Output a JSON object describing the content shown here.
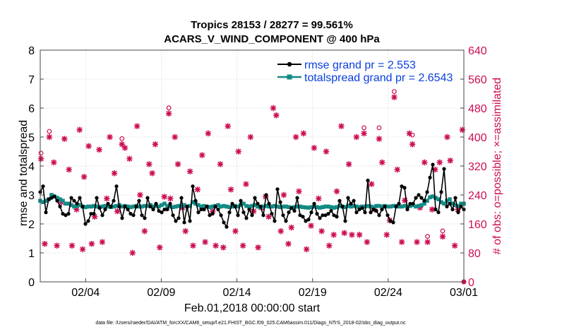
{
  "chart_data": {
    "type": "line",
    "title": "Tropics 28153 / 28277 = 99.561%",
    "subtitle": "ACARS_V_WIND_COMPONENT @ 400 hPa",
    "xlabel": "Feb.01,2018 00:00:00 start",
    "ylabel_left": "rmse and totalspread",
    "ylabel_right": "# of obs: o=possible; ×=assimilated",
    "ylim_left": [
      0,
      8
    ],
    "ylim_right": [
      0,
      640
    ],
    "xlim": [
      0,
      28
    ],
    "y_ticks_left": [
      "0",
      "1",
      "2",
      "3",
      "4",
      "5",
      "6",
      "7",
      "8"
    ],
    "y_ticks_right": [
      "0",
      "80",
      "160",
      "240",
      "320",
      "400",
      "480",
      "560",
      "640"
    ],
    "x_ticks": [
      {
        "x": 3,
        "label": "02/04"
      },
      {
        "x": 8,
        "label": "02/09"
      },
      {
        "x": 13,
        "label": "02/14"
      },
      {
        "x": 18,
        "label": "02/19"
      },
      {
        "x": 23,
        "label": "02/24"
      },
      {
        "x": 28,
        "label": "03/01"
      }
    ],
    "grid": true,
    "legend_position": "top-right",
    "colors": {
      "rmse": "#000000",
      "spread": "#128a85",
      "obs": "#cc0e55",
      "legend_text": "#0a3fe0"
    },
    "series": [
      {
        "name": "rmse grand pr = 2.553",
        "axis": "left",
        "marker": "circle",
        "values": [
          3.1,
          3.3,
          2.4,
          2.85,
          2.9,
          2.95,
          2.8,
          2.6,
          2.35,
          2.3,
          2.35,
          2.9,
          2.8,
          2.7,
          2.9,
          2.6,
          2.0,
          2.1,
          2.35,
          2.35,
          2.9,
          2.55,
          2.3,
          2.5,
          2.7,
          2.6,
          2.8,
          3.3,
          2.6,
          2.2,
          2.6,
          2.5,
          2.35,
          2.3,
          2.6,
          2.8,
          2.3,
          2.2,
          2.9,
          2.6,
          2.5,
          2.7,
          2.45,
          2.4,
          2.5,
          2.5,
          2.7,
          2.3,
          2.1,
          2.2,
          2.9,
          2.05,
          2.6,
          2.1,
          3.3,
          2.8,
          2.4,
          2.5,
          2.5,
          2.6,
          2.3,
          2.35,
          2.6,
          2.5,
          2.3,
          2.05,
          1.9,
          2.4,
          2.7,
          2.6,
          2.3,
          2.8,
          2.4,
          2.2,
          2.5,
          2.3,
          2.9,
          2.7,
          2.6,
          2.3,
          3.0,
          2.7,
          2.35,
          2.1,
          3.2,
          2.75,
          2.3,
          2.1,
          2.4,
          2.55,
          2.45,
          2.9,
          2.3,
          2.25,
          2.1,
          2.15,
          2.4,
          2.7,
          2.35,
          2.2,
          2.3,
          2.3,
          2.35,
          2.45,
          2.3,
          2.25,
          2.8,
          2.6,
          2.1,
          2.9,
          2.7,
          2.8,
          2.4,
          2.5,
          2.55,
          2.4,
          3.5,
          2.4,
          2.5,
          2.45,
          2.3,
          2.5,
          2.6,
          2.3,
          2.1,
          2.05,
          2.6,
          2.7,
          3.3,
          3.25,
          2.5,
          2.7,
          2.7,
          2.9,
          3.0,
          2.9,
          2.8,
          3.1,
          3.6,
          4.05,
          2.5,
          2.4,
          3.1,
          3.9,
          2.6,
          2.7,
          2.5,
          2.9,
          2.4,
          2.6,
          2.5
        ],
        "value_precision": "approximate, read from plot"
      },
      {
        "name": "totalspread grand pr = 2.6543",
        "axis": "left",
        "marker": "square",
        "values": [
          2.8,
          2.75,
          2.8,
          2.85,
          3.0,
          2.95,
          2.9,
          2.85,
          2.8,
          2.7,
          2.7,
          2.65,
          2.6,
          2.62,
          2.65,
          2.6,
          2.58,
          2.6,
          2.6,
          2.62,
          2.6,
          2.58,
          2.6,
          2.62,
          2.6,
          2.58,
          2.6,
          2.62,
          2.65,
          2.6,
          2.62,
          2.6,
          2.58,
          2.6,
          2.62,
          2.6,
          2.6,
          2.62,
          2.62,
          2.65,
          2.6,
          2.62,
          2.6,
          2.65,
          2.7,
          2.62,
          2.6,
          2.58,
          2.6,
          2.62,
          2.6,
          2.65,
          2.6,
          2.62,
          2.75,
          2.7,
          2.65,
          2.6,
          2.62,
          2.6,
          2.58,
          2.6,
          2.62,
          2.65,
          2.6,
          2.62,
          2.6,
          2.58,
          2.6,
          2.62,
          2.6,
          2.65,
          2.7,
          2.62,
          2.6,
          2.62,
          2.65,
          2.6,
          2.58,
          2.6,
          2.62,
          2.6,
          2.6,
          2.62,
          2.6,
          2.58,
          2.6,
          2.6,
          2.58,
          2.56,
          2.58,
          2.6,
          2.6,
          2.58,
          2.57,
          2.56,
          2.58,
          2.6,
          2.58,
          2.56,
          2.58,
          2.6,
          2.6,
          2.58,
          2.56,
          2.58,
          2.62,
          2.6,
          2.58,
          2.62,
          2.6,
          2.62,
          2.6,
          2.58,
          2.6,
          2.6,
          2.62,
          2.6,
          2.58,
          2.62,
          2.62,
          2.6,
          2.62,
          2.6,
          2.6,
          2.62,
          2.62,
          2.6,
          2.6,
          2.62,
          2.6,
          2.62,
          2.65,
          2.6,
          2.62,
          2.65,
          2.7,
          2.8,
          2.92,
          2.95,
          2.9,
          2.85,
          2.75,
          2.7,
          2.8,
          2.85,
          2.7,
          2.65,
          2.62,
          2.7,
          2.7
        ],
        "value_precision": "approximate, read from plot"
      },
      {
        "name": "# of obs assimilated",
        "axis": "right",
        "marker": "cross",
        "points": [
          [
            0.05,
            340
          ],
          [
            0.3,
            105
          ],
          [
            0.6,
            400
          ],
          [
            0.9,
            330
          ],
          [
            1.1,
            100
          ],
          [
            1.4,
            220
          ],
          [
            1.6,
            395
          ],
          [
            1.9,
            310
          ],
          [
            2.1,
            100
          ],
          [
            2.4,
            200
          ],
          [
            2.6,
            420
          ],
          [
            2.8,
            90
          ],
          [
            2.9,
            290
          ],
          [
            3.2,
            375
          ],
          [
            3.4,
            105
          ],
          [
            3.6,
            180
          ],
          [
            3.9,
            365
          ],
          [
            4.1,
            110
          ],
          [
            4.4,
            230
          ],
          [
            4.6,
            400
          ],
          [
            4.9,
            300
          ],
          [
            5.1,
            195
          ],
          [
            5.4,
            380
          ],
          [
            5.6,
            370
          ],
          [
            5.9,
            340
          ],
          [
            6.1,
            80
          ],
          [
            6.4,
            430
          ],
          [
            6.6,
            240
          ],
          [
            6.9,
            140
          ],
          [
            7.2,
            325
          ],
          [
            7.4,
            300
          ],
          [
            7.6,
            380
          ],
          [
            7.9,
            95
          ],
          [
            8.2,
            235
          ],
          [
            8.5,
            465
          ],
          [
            8.6,
            230
          ],
          [
            8.9,
            400
          ],
          [
            9.1,
            325
          ],
          [
            9.4,
            205
          ],
          [
            9.6,
            140
          ],
          [
            9.9,
            305
          ],
          [
            10.1,
            100
          ],
          [
            10.4,
            255
          ],
          [
            10.7,
            350
          ],
          [
            10.9,
            110
          ],
          [
            11.1,
            410
          ],
          [
            11.4,
            195
          ],
          [
            11.6,
            100
          ],
          [
            11.9,
            325
          ],
          [
            12.1,
            95
          ],
          [
            12.4,
            430
          ],
          [
            12.6,
            255
          ],
          [
            12.9,
            140
          ],
          [
            13.1,
            360
          ],
          [
            13.4,
            100
          ],
          [
            13.6,
            270
          ],
          [
            13.9,
            400
          ],
          [
            14.1,
            195
          ],
          [
            14.4,
            95
          ],
          [
            14.6,
            205
          ],
          [
            14.9,
            235
          ],
          [
            15.1,
            180
          ],
          [
            15.4,
            480
          ],
          [
            15.6,
            460
          ],
          [
            15.9,
            140
          ],
          [
            16.1,
            240
          ],
          [
            16.4,
            105
          ],
          [
            16.6,
            150
          ],
          [
            16.9,
            400
          ],
          [
            17.1,
            250
          ],
          [
            17.4,
            410
          ],
          [
            17.6,
            90
          ],
          [
            17.9,
            155
          ],
          [
            18.1,
            370
          ],
          [
            18.4,
            230
          ],
          [
            18.6,
            140
          ],
          [
            18.9,
            360
          ],
          [
            19.1,
            100
          ],
          [
            19.4,
            130
          ],
          [
            19.6,
            250
          ],
          [
            19.9,
            430
          ],
          [
            20.1,
            135
          ],
          [
            20.4,
            325
          ],
          [
            20.6,
            130
          ],
          [
            20.9,
            400
          ],
          [
            21.1,
            130
          ],
          [
            21.4,
            410
          ],
          [
            21.6,
            110
          ],
          [
            21.9,
            270
          ],
          [
            22.1,
            200
          ],
          [
            22.4,
            395
          ],
          [
            22.6,
            330
          ],
          [
            22.9,
            130
          ],
          [
            23.1,
            170
          ],
          [
            23.4,
            510
          ],
          [
            23.6,
            310
          ],
          [
            23.9,
            110
          ],
          [
            24.1,
            225
          ],
          [
            24.4,
            410
          ],
          [
            24.6,
            380
          ],
          [
            24.9,
            110
          ],
          [
            25.1,
            205
          ],
          [
            25.4,
            330
          ],
          [
            25.6,
            110
          ],
          [
            25.9,
            200
          ],
          [
            26.1,
            310
          ],
          [
            26.4,
            330
          ],
          [
            26.6,
            125
          ],
          [
            26.9,
            400
          ],
          [
            27.1,
            335
          ],
          [
            27.4,
            100
          ],
          [
            27.6,
            200
          ],
          [
            27.9,
            420
          ]
        ]
      },
      {
        "name": "# of obs possible",
        "axis": "right",
        "marker": "open-circle",
        "points": [
          [
            0.05,
            340
          ],
          [
            0.6,
            400
          ],
          [
            5.4,
            380
          ],
          [
            8.5,
            465
          ],
          [
            21.4,
            410
          ],
          [
            22.4,
            410
          ],
          [
            23.4,
            510
          ],
          [
            24.6,
            390
          ],
          [
            25.6,
            110
          ],
          [
            26.6,
            125
          ]
        ]
      }
    ],
    "footnote": "data file: /Users/raeder/DAI/ATM_forcXX/CAM6_setup/f.e21.FHIST_BGC.f09_025.CAM6assim.011/Diags_NTrS_2018-02/obs_diag_output.nc"
  }
}
